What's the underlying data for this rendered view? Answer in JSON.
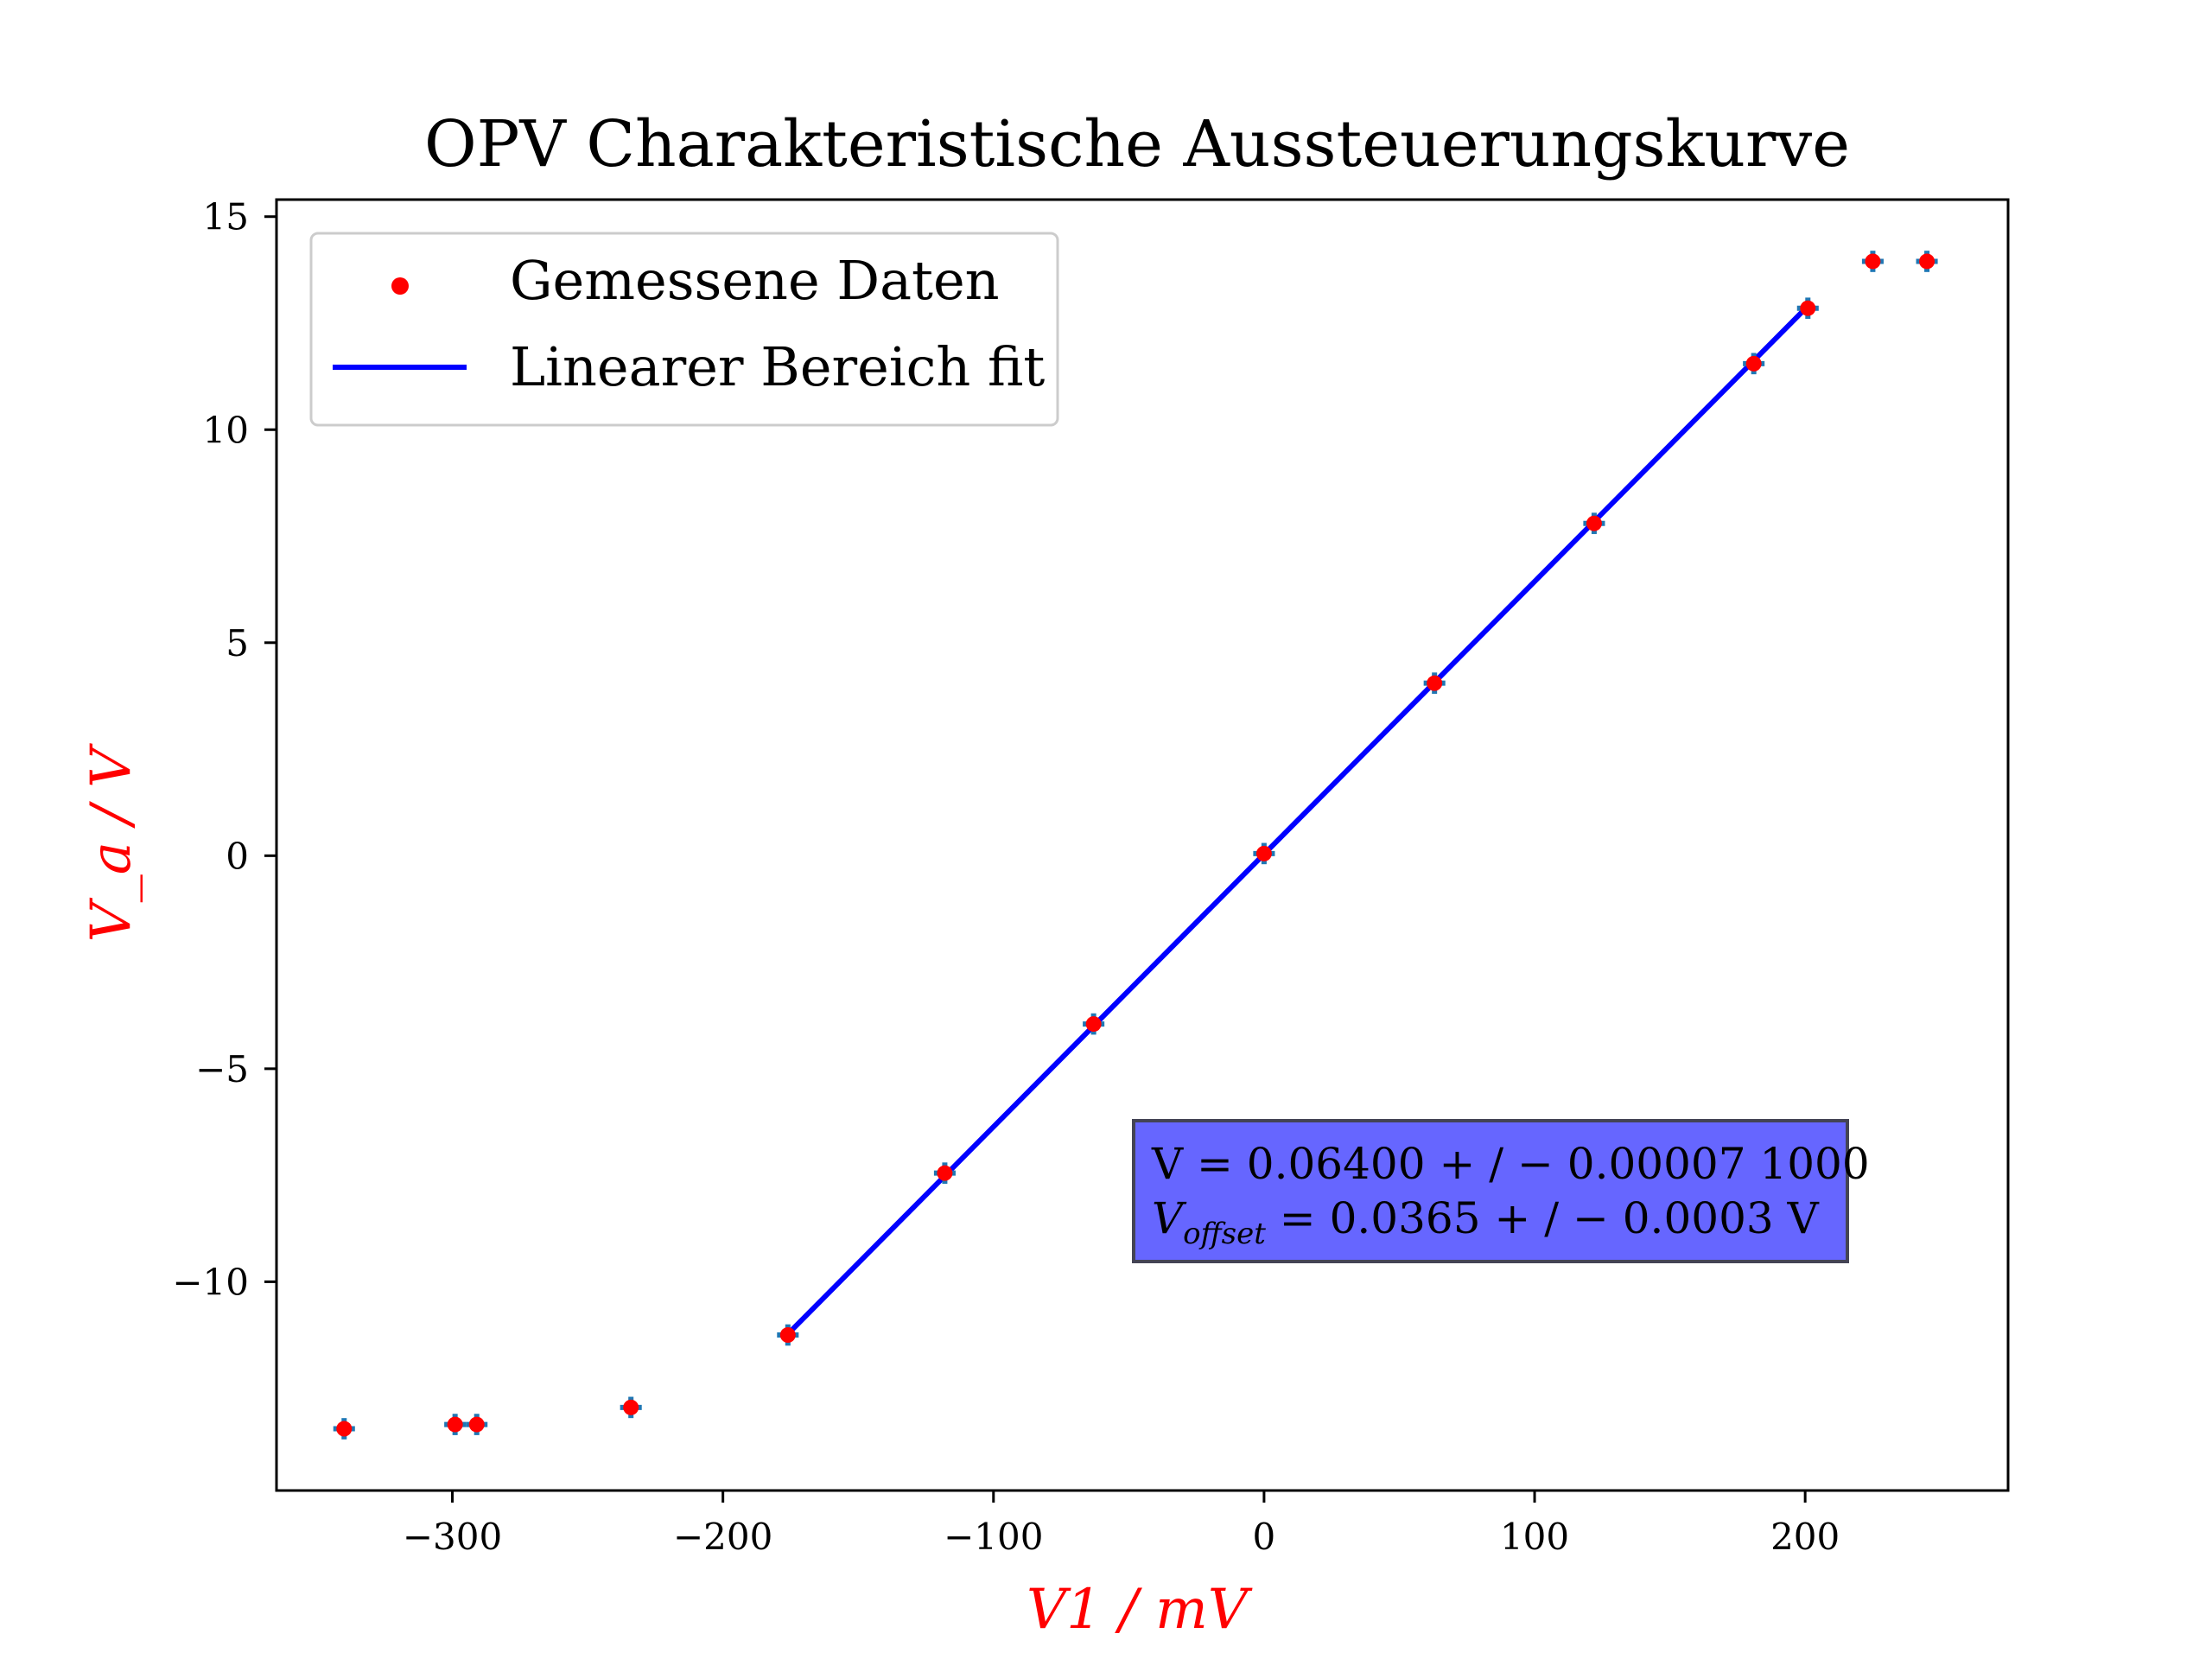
{
  "chart_data": {
    "type": "scatter",
    "title": "OPV Charakteristische Aussteuerungskurve",
    "xlabel": "V1 / mV",
    "ylabel": "V_a / V",
    "xlim": [
      -365,
      275
    ],
    "ylim": [
      -14.9,
      15.4
    ],
    "xticks": [
      -300,
      -200,
      -100,
      0,
      100,
      200
    ],
    "yticks": [
      -10,
      -5,
      0,
      5,
      10,
      15
    ],
    "xtick_labels": [
      "−300",
      "−200",
      "−100",
      "0",
      "100",
      "200"
    ],
    "ytick_labels": [
      "−10",
      "−5",
      "0",
      "5",
      "10",
      "15"
    ],
    "grid": false,
    "legend": {
      "position": "top-left",
      "entries": [
        {
          "label": "Gemessene Daten",
          "kind": "marker",
          "color": "#ff0000"
        },
        {
          "label": "Linearer Bereich fit",
          "kind": "line",
          "color": "#0000ff"
        }
      ]
    },
    "series": [
      {
        "name": "Gemessene Daten",
        "color": "#ff0000",
        "errorbar_color": "#1f77b4",
        "x_err": 4,
        "y_err": 0.25,
        "x": [
          -340,
          -299,
          -291,
          -234,
          -176,
          -118,
          -63,
          0,
          63,
          122,
          181,
          201,
          225,
          245
        ],
        "y": [
          -13.45,
          -13.35,
          -13.35,
          -12.95,
          -11.25,
          -7.45,
          -3.95,
          0.05,
          4.05,
          7.8,
          11.55,
          12.85,
          13.95,
          13.95
        ]
      }
    ],
    "fit": {
      "name": "Linearer Bereich fit",
      "color": "#0000ff",
      "x_range": [
        -176,
        201
      ],
      "slope": 0.064,
      "intercept": 0.0365
    },
    "annotation": {
      "line1": "V = 0.06400 + / − 0.00007 1000",
      "line2_prefix": "V",
      "line2_sub": "offset",
      "line2_rest": " = 0.0365 + / − 0.0003 V",
      "box_color": "#6666ff"
    }
  }
}
